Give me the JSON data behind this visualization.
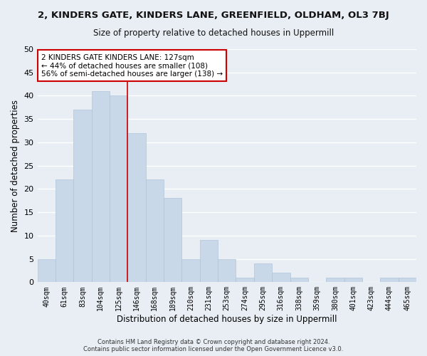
{
  "title": "2, KINDERS GATE, KINDERS LANE, GREENFIELD, OLDHAM, OL3 7BJ",
  "subtitle": "Size of property relative to detached houses in Uppermill",
  "xlabel": "Distribution of detached houses by size in Uppermill",
  "ylabel": "Number of detached properties",
  "bar_color": "#c8d8e8",
  "bar_edge_color": "#b0c4d8",
  "categories": [
    "40sqm",
    "61sqm",
    "83sqm",
    "104sqm",
    "125sqm",
    "146sqm",
    "168sqm",
    "189sqm",
    "210sqm",
    "231sqm",
    "253sqm",
    "274sqm",
    "295sqm",
    "316sqm",
    "338sqm",
    "359sqm",
    "380sqm",
    "401sqm",
    "423sqm",
    "444sqm",
    "465sqm"
  ],
  "values": [
    5,
    22,
    37,
    41,
    40,
    32,
    22,
    18,
    5,
    9,
    5,
    1,
    4,
    2,
    1,
    0,
    1,
    1,
    0,
    1,
    1
  ],
  "vline_x": 4.5,
  "vline_color": "#cc0000",
  "ylim": [
    0,
    50
  ],
  "yticks": [
    0,
    5,
    10,
    15,
    20,
    25,
    30,
    35,
    40,
    45,
    50
  ],
  "annotation_title": "2 KINDERS GATE KINDERS LANE: 127sqm",
  "annotation_line1": "← 44% of detached houses are smaller (108)",
  "annotation_line2": "56% of semi-detached houses are larger (138) →",
  "annotation_box_color": "#ffffff",
  "annotation_box_edge": "#cc0000",
  "footer1": "Contains HM Land Registry data © Crown copyright and database right 2024.",
  "footer2": "Contains public sector information licensed under the Open Government Licence v3.0.",
  "bg_color": "#e8eef4",
  "grid_color": "#ffffff"
}
